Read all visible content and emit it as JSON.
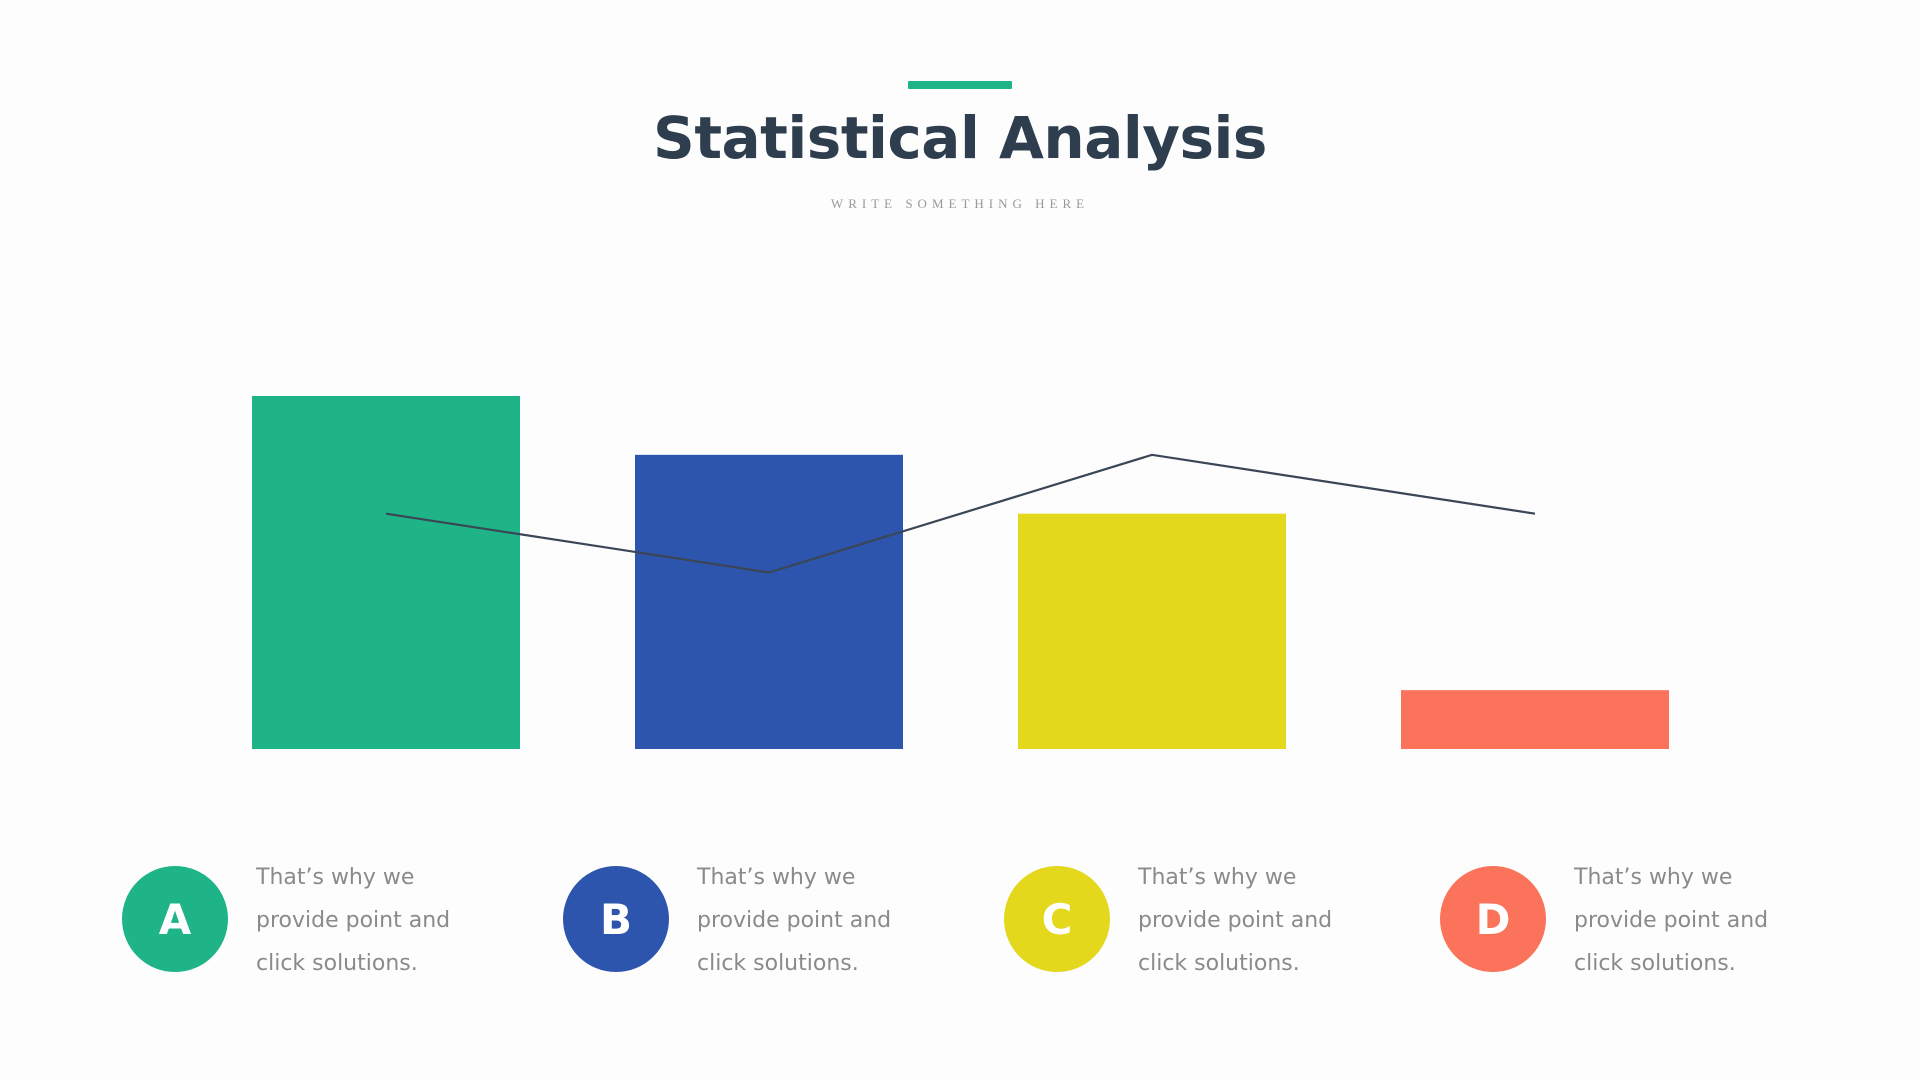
{
  "header": {
    "title": "Statistical Analysis",
    "subtitle": "WRITE SOMETHING HERE",
    "accent_color": "#1eb487"
  },
  "chart_data": {
    "type": "bar",
    "categories": [
      "A",
      "B",
      "C",
      "D"
    ],
    "series": [
      {
        "type": "bar",
        "values": [
          6,
          5,
          4,
          1
        ]
      },
      {
        "type": "line",
        "values": [
          4,
          3,
          5,
          4
        ]
      }
    ],
    "ylim": [
      0,
      6
    ],
    "grid": false,
    "bar_colors": [
      "#1eb487",
      "#2e55ae",
      "#e3d81c",
      "#fa735a"
    ],
    "line_color": "#3a4656"
  },
  "legend": [
    {
      "letter": "A",
      "text_line1": "That’s why we",
      "text_line2": "provide point and",
      "text_line3": "click solutions.",
      "color": "#1eb487"
    },
    {
      "letter": "B",
      "text_line1": "That’s why we",
      "text_line2": "provide point and",
      "text_line3": "click solutions.",
      "color": "#2e55ae"
    },
    {
      "letter": "C",
      "text_line1": "That’s why we",
      "text_line2": "provide point and",
      "text_line3": "click solutions.",
      "color": "#e3d81c"
    },
    {
      "letter": "D",
      "text_line1": "That’s why we",
      "text_line2": "provide point and",
      "text_line3": "click solutions.",
      "color": "#fa735a"
    }
  ]
}
